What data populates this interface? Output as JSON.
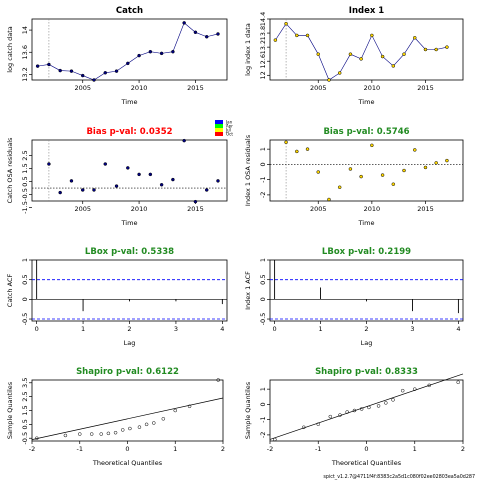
{
  "footer": "spict_v1.2.7@4711f4f:8383c2a5d1c080f02ee02803ea5a0d287",
  "colors": {
    "bias_fail": "#ff0000",
    "pass": "#228B22",
    "text": "#000000",
    "conf": "#0000ff",
    "point_fill": "#FFD700"
  },
  "chart_data": [
    {
      "type": "line",
      "panel": "catch-data",
      "title": "Catch",
      "title_color": "#000000",
      "xlabel": "Time",
      "ylabel": "log catch data",
      "xlim": [
        2000.5,
        2017.8
      ],
      "ylim": [
        13.1,
        14.2
      ],
      "xticks": [
        2005,
        2010,
        2015
      ],
      "yticks": [
        13.2,
        13.6,
        14.0
      ],
      "vline": 2002.0,
      "point_color": "#000080",
      "x": [
        2001,
        2002,
        2003,
        2004,
        2005,
        2006,
        2007,
        2008,
        2009,
        2010,
        2011,
        2012,
        2013,
        2014,
        2015,
        2016,
        2017
      ],
      "values": [
        13.35,
        13.38,
        13.27,
        13.26,
        13.18,
        13.1,
        13.23,
        13.26,
        13.4,
        13.54,
        13.61,
        13.58,
        13.61,
        14.13,
        13.96,
        13.88,
        13.93
      ]
    },
    {
      "type": "line",
      "panel": "index-data",
      "title": "Index 1",
      "title_color": "#000000",
      "xlabel": "Time",
      "ylabel": "log index 1 data",
      "xlim": [
        2000.5,
        2018.5
      ],
      "ylim": [
        11.8,
        14.4
      ],
      "xticks": [
        2005,
        2010,
        2015
      ],
      "yticks": [
        12.0,
        12.6,
        13.2,
        13.8,
        14.4
      ],
      "vline": 2002.0,
      "point_color": "#FFD700",
      "x": [
        2001,
        2002,
        2003,
        2004,
        2005,
        2006,
        2007,
        2008,
        2009,
        2010,
        2011,
        2012,
        2013,
        2014,
        2015,
        2016,
        2017
      ],
      "values": [
        13.5,
        14.2,
        13.7,
        13.7,
        12.9,
        11.8,
        12.1,
        12.9,
        12.7,
        13.7,
        12.8,
        12.4,
        12.9,
        13.6,
        13.1,
        13.1,
        13.2
      ]
    },
    {
      "type": "scatter",
      "panel": "catch-osa",
      "title": "Bias p-val: 0.0352",
      "title_color": "#ff0000",
      "xlabel": "Time",
      "ylabel": "Catch OSA residuals",
      "xlim": [
        2000.5,
        2017.8
      ],
      "ylim": [
        -1.0,
        3.7
      ],
      "xticks": [
        2005,
        2010,
        2015
      ],
      "yticks": [
        -1.5,
        -0.5,
        0.5,
        1.5,
        2.5
      ],
      "zero_line": true,
      "vline": 2002.0,
      "point_color": "#000080",
      "x": [
        2002,
        2003,
        2004,
        2005,
        2006,
        2007,
        2008,
        2009,
        2010,
        2011,
        2012,
        2013,
        2014,
        2015,
        2016,
        2017
      ],
      "values": [
        1.85,
        -0.35,
        0.55,
        -0.15,
        -0.15,
        1.85,
        0.15,
        1.55,
        1.05,
        1.05,
        0.25,
        0.65,
        3.65,
        -1.05,
        -0.15,
        0.55
      ]
    },
    {
      "type": "scatter",
      "panel": "index-osa",
      "title": "Bias p-val: 0.5746",
      "title_color": "#228B22",
      "xlabel": "Time",
      "ylabel": "Index 1 OSA residuals",
      "xlim": [
        2000.5,
        2018.5
      ],
      "ylim": [
        -2.4,
        1.6
      ],
      "xticks": [
        2005,
        2010,
        2015
      ],
      "yticks": [
        -2,
        -1,
        0,
        1
      ],
      "zero_line": true,
      "vline": 2002.0,
      "point_color": "#FFD700",
      "x": [
        2002,
        2003,
        2004,
        2005,
        2006,
        2007,
        2008,
        2009,
        2010,
        2011,
        2012,
        2013,
        2014,
        2015,
        2016,
        2017
      ],
      "values": [
        1.45,
        0.85,
        1.0,
        -0.5,
        -2.3,
        -1.5,
        -0.3,
        -0.8,
        1.25,
        -0.7,
        -1.3,
        -0.4,
        0.95,
        -0.2,
        0.1,
        0.25
      ]
    },
    {
      "type": "bar",
      "panel": "catch-acf",
      "title": "LBox p-val: 0.5338",
      "title_color": "#228B22",
      "xlabel": "Lag",
      "ylabel": "Catch ACF",
      "xlim": [
        -0.1,
        4.1
      ],
      "ylim": [
        -0.55,
        1.0
      ],
      "xticks": [
        0,
        1,
        2,
        3,
        4
      ],
      "yticks": [
        -0.5,
        0.0,
        0.5,
        1.0
      ],
      "conf": 0.5,
      "x": [
        0,
        1,
        2,
        3,
        4
      ],
      "values": [
        1.0,
        -0.3,
        -0.05,
        -0.05,
        -0.12
      ]
    },
    {
      "type": "bar",
      "panel": "index-acf",
      "title": "LBox p-val: 0.2199",
      "title_color": "#228B22",
      "xlabel": "Lag",
      "ylabel": "Index 1 ACF",
      "xlim": [
        -0.1,
        4.1
      ],
      "ylim": [
        -0.55,
        1.0
      ],
      "xticks": [
        0,
        1,
        2,
        3,
        4
      ],
      "yticks": [
        -0.5,
        0.0,
        0.5,
        1.0
      ],
      "conf": 0.5,
      "x": [
        0,
        1,
        2,
        3,
        4
      ],
      "values": [
        1.0,
        0.3,
        -0.05,
        -0.3,
        -0.35
      ]
    },
    {
      "type": "scatter",
      "panel": "catch-qq",
      "title": "Shapiro p-val: 0.6122",
      "title_color": "#228B22",
      "xlabel": "Theoretical Quantiles",
      "ylabel": "Sample Quantiles",
      "xlim": [
        -2.0,
        2.0
      ],
      "ylim": [
        -0.7,
        3.7
      ],
      "xticks": [
        -2,
        -1,
        0,
        1,
        2
      ],
      "yticks": [
        -0.5,
        0.5,
        1.5,
        2.5,
        3.5
      ],
      "ref_line": [
        [
          -2.0,
          -0.6
        ],
        [
          2.0,
          2.4
        ]
      ],
      "point_color": "#000000",
      "x": [
        -1.9,
        -1.3,
        -1.0,
        -0.75,
        -0.55,
        -0.4,
        -0.25,
        -0.1,
        0.05,
        0.25,
        0.4,
        0.55,
        0.75,
        1.0,
        1.3,
        1.9
      ],
      "values": [
        -0.5,
        -0.3,
        -0.2,
        -0.2,
        -0.2,
        -0.15,
        -0.1,
        0.1,
        0.2,
        0.3,
        0.5,
        0.6,
        0.9,
        1.5,
        1.8,
        3.7
      ]
    },
    {
      "type": "scatter",
      "panel": "index-qq",
      "title": "Shapiro p-val: 0.8333",
      "title_color": "#228B22",
      "xlabel": "Theoretical Quantiles",
      "ylabel": "Sample Quantiles",
      "xlim": [
        -2.0,
        2.0
      ],
      "ylim": [
        -2.4,
        1.6
      ],
      "xticks": [
        -2,
        -1,
        0,
        1,
        2
      ],
      "yticks": [
        -2,
        -1,
        0,
        1
      ],
      "ref_line": [
        [
          -2.0,
          -2.3
        ],
        [
          2.0,
          2.0
        ]
      ],
      "point_color": "#000000",
      "x": [
        -1.9,
        -1.3,
        -1.0,
        -0.75,
        -0.55,
        -0.4,
        -0.25,
        -0.1,
        0.05,
        0.25,
        0.4,
        0.55,
        0.75,
        1.0,
        1.3,
        1.9
      ],
      "values": [
        -2.3,
        -1.5,
        -1.3,
        -0.8,
        -0.7,
        -0.5,
        -0.4,
        -0.3,
        -0.2,
        -0.1,
        0.1,
        0.3,
        0.9,
        1.0,
        1.25,
        1.45
      ]
    }
  ],
  "legend": {
    "labels": [
      "Jan",
      "Apr",
      "Jul",
      "Oct"
    ],
    "colors": [
      "#0000ff",
      "#00ff00",
      "#ffff00",
      "#ff0000"
    ]
  }
}
